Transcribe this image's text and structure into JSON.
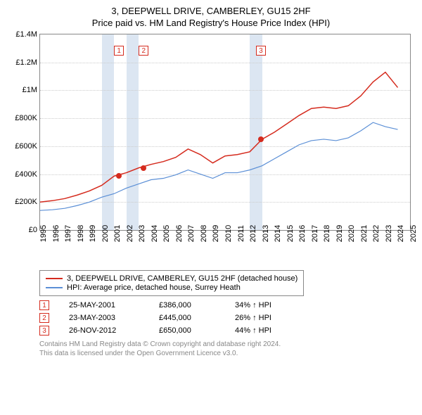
{
  "chart": {
    "title_line1": "3, DEEPWELL DRIVE, CAMBERLEY, GU15 2HF",
    "title_line2": "Price paid vs. HM Land Registry's House Price Index (HPI)",
    "type": "line",
    "x_range": [
      1995,
      2025
    ],
    "y_range": [
      0,
      1400000
    ],
    "y_ticks": [
      0,
      200000,
      400000,
      600000,
      800000,
      1000000,
      1200000,
      1400000
    ],
    "y_tick_labels": [
      "£0",
      "£200K",
      "£400K",
      "£600K",
      "£800K",
      "£1M",
      "£1.2M",
      "£1.4M"
    ],
    "x_ticks": [
      1995,
      1996,
      1997,
      1998,
      1999,
      2000,
      2001,
      2002,
      2003,
      2004,
      2005,
      2006,
      2007,
      2008,
      2009,
      2010,
      2011,
      2012,
      2013,
      2014,
      2015,
      2016,
      2017,
      2018,
      2019,
      2020,
      2021,
      2022,
      2023,
      2024,
      2025
    ],
    "vband_years": [
      [
        2000,
        2001
      ],
      [
        2002,
        2003
      ],
      [
        2012,
        2013
      ]
    ],
    "vband_color": "#dce6f2",
    "grid_color": "#cccccc",
    "border_color": "#888888",
    "background_color": "#ffffff",
    "series": {
      "subject": {
        "color": "#d52b1e",
        "width": 1.5,
        "points": [
          [
            1995,
            200000
          ],
          [
            1996,
            210000
          ],
          [
            1997,
            225000
          ],
          [
            1998,
            250000
          ],
          [
            1999,
            280000
          ],
          [
            2000,
            320000
          ],
          [
            2001,
            386000
          ],
          [
            2002,
            410000
          ],
          [
            2003,
            445000
          ],
          [
            2004,
            470000
          ],
          [
            2005,
            490000
          ],
          [
            2006,
            520000
          ],
          [
            2007,
            580000
          ],
          [
            2008,
            540000
          ],
          [
            2009,
            480000
          ],
          [
            2010,
            530000
          ],
          [
            2011,
            540000
          ],
          [
            2012,
            560000
          ],
          [
            2013,
            650000
          ],
          [
            2014,
            700000
          ],
          [
            2015,
            760000
          ],
          [
            2016,
            820000
          ],
          [
            2017,
            870000
          ],
          [
            2018,
            880000
          ],
          [
            2019,
            870000
          ],
          [
            2020,
            890000
          ],
          [
            2021,
            960000
          ],
          [
            2022,
            1060000
          ],
          [
            2023,
            1130000
          ],
          [
            2024,
            1020000
          ]
        ]
      },
      "hpi": {
        "color": "#5b8fd6",
        "width": 1.2,
        "points": [
          [
            1995,
            140000
          ],
          [
            1996,
            145000
          ],
          [
            1997,
            155000
          ],
          [
            1998,
            175000
          ],
          [
            1999,
            200000
          ],
          [
            2000,
            235000
          ],
          [
            2001,
            260000
          ],
          [
            2002,
            300000
          ],
          [
            2003,
            330000
          ],
          [
            2004,
            360000
          ],
          [
            2005,
            370000
          ],
          [
            2006,
            395000
          ],
          [
            2007,
            430000
          ],
          [
            2008,
            400000
          ],
          [
            2009,
            370000
          ],
          [
            2010,
            410000
          ],
          [
            2011,
            410000
          ],
          [
            2012,
            430000
          ],
          [
            2013,
            460000
          ],
          [
            2014,
            510000
          ],
          [
            2015,
            560000
          ],
          [
            2016,
            610000
          ],
          [
            2017,
            640000
          ],
          [
            2018,
            650000
          ],
          [
            2019,
            640000
          ],
          [
            2020,
            660000
          ],
          [
            2021,
            710000
          ],
          [
            2022,
            770000
          ],
          [
            2023,
            740000
          ],
          [
            2024,
            720000
          ]
        ]
      }
    },
    "markers": [
      {
        "n": "1",
        "x": 2001.4,
        "y": 386000
      },
      {
        "n": "2",
        "x": 2003.4,
        "y": 445000
      },
      {
        "n": "3",
        "x": 2012.9,
        "y": 650000
      }
    ]
  },
  "legend": {
    "items": [
      {
        "color": "#d52b1e",
        "label": "3, DEEPWELL DRIVE, CAMBERLEY, GU15 2HF (detached house)"
      },
      {
        "color": "#5b8fd6",
        "label": "HPI: Average price, detached house, Surrey Heath"
      }
    ]
  },
  "sales": [
    {
      "n": "1",
      "date": "25-MAY-2001",
      "price": "£386,000",
      "vs": "34% ↑ HPI"
    },
    {
      "n": "2",
      "date": "23-MAY-2003",
      "price": "£445,000",
      "vs": "26% ↑ HPI"
    },
    {
      "n": "3",
      "date": "26-NOV-2012",
      "price": "£650,000",
      "vs": "44% ↑ HPI"
    }
  ],
  "footer": {
    "line1": "Contains HM Land Registry data © Crown copyright and database right 2024.",
    "line2": "This data is licensed under the Open Government Licence v3.0."
  }
}
